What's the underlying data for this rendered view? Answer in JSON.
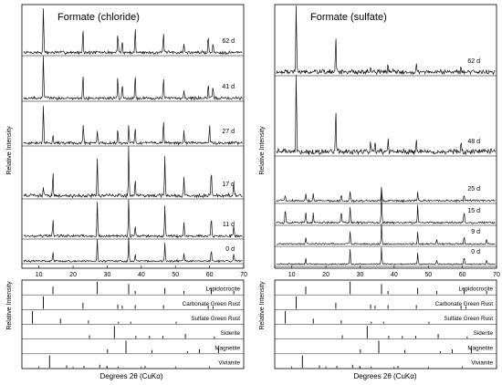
{
  "chart_data": [
    {
      "type": "line",
      "panel": "left",
      "title": "Formate (chloride)",
      "ylabel": "Relative Intensity",
      "xlim": [
        5,
        70
      ],
      "xticks": [
        10,
        20,
        30,
        40,
        50,
        60,
        70
      ],
      "series": [
        {
          "name": "62 d",
          "peaks": [
            [
              11.3,
              1.0
            ],
            [
              22.9,
              0.55
            ],
            [
              33.1,
              0.45
            ],
            [
              34.4,
              0.3
            ],
            [
              38.2,
              0.55
            ],
            [
              46.5,
              0.45
            ],
            [
              52.5,
              0.2
            ],
            [
              59.6,
              0.4
            ],
            [
              61.0,
              0.2
            ]
          ]
        },
        {
          "name": "41 d",
          "peaks": [
            [
              11.3,
              1.0
            ],
            [
              22.9,
              0.6
            ],
            [
              33.1,
              0.5
            ],
            [
              34.4,
              0.35
            ],
            [
              38.2,
              0.55
            ],
            [
              46.5,
              0.45
            ],
            [
              52.5,
              0.2
            ],
            [
              59.6,
              0.35
            ],
            [
              61.0,
              0.25
            ]
          ]
        },
        {
          "name": "27 d",
          "peaks": [
            [
              11.3,
              1.0
            ],
            [
              14.1,
              0.2
            ],
            [
              23.0,
              0.45
            ],
            [
              27.1,
              0.3
            ],
            [
              33.1,
              0.35
            ],
            [
              36.3,
              0.45
            ],
            [
              38.2,
              0.4
            ],
            [
              46.5,
              0.55
            ],
            [
              52.5,
              0.3
            ],
            [
              60.0,
              0.45
            ]
          ]
        },
        {
          "name": "17 d",
          "peaks": [
            [
              11.3,
              0.2
            ],
            [
              14.1,
              0.45
            ],
            [
              27.1,
              0.75
            ],
            [
              36.3,
              1.0
            ],
            [
              38.2,
              0.35
            ],
            [
              46.9,
              0.8
            ],
            [
              52.5,
              0.35
            ],
            [
              60.5,
              0.5
            ],
            [
              67.1,
              0.25
            ]
          ]
        },
        {
          "name": "11 d",
          "peaks": [
            [
              14.1,
              0.45
            ],
            [
              27.1,
              0.9
            ],
            [
              36.3,
              1.0
            ],
            [
              38.2,
              0.3
            ],
            [
              46.9,
              0.8
            ],
            [
              52.5,
              0.35
            ],
            [
              60.5,
              0.55
            ],
            [
              67.1,
              0.3
            ]
          ]
        },
        {
          "name": "0 d",
          "peaks": [
            [
              14.1,
              0.35
            ],
            [
              27.1,
              0.9
            ],
            [
              36.3,
              1.0
            ],
            [
              38.2,
              0.3
            ],
            [
              46.9,
              0.75
            ],
            [
              52.5,
              0.3
            ],
            [
              60.5,
              0.5
            ],
            [
              67.1,
              0.3
            ]
          ]
        }
      ],
      "reference_ylabel": "Relative Intensity",
      "reference_xlabel": "Degrees 2θ (CuKα)",
      "references": [
        {
          "name": "Lepidocrocite",
          "sticks": [
            [
              14.1,
              0.6
            ],
            [
              27.1,
              1.0
            ],
            [
              36.3,
              0.8
            ],
            [
              38.2,
              0.25
            ],
            [
              46.9,
              0.5
            ],
            [
              52.5,
              0.25
            ],
            [
              60.5,
              0.4
            ],
            [
              67.1,
              0.25
            ]
          ]
        },
        {
          "name": "Carbonate Green Rust",
          "sticks": [
            [
              11.3,
              1.0
            ],
            [
              22.9,
              0.5
            ],
            [
              33.1,
              0.35
            ],
            [
              34.4,
              0.25
            ],
            [
              38.2,
              0.3
            ],
            [
              46.5,
              0.3
            ],
            [
              59.6,
              0.25
            ],
            [
              61.0,
              0.2
            ]
          ]
        },
        {
          "name": "Sulfate Green Rust",
          "sticks": [
            [
              8.1,
              1.0
            ],
            [
              16.3,
              0.4
            ],
            [
              24.5,
              0.25
            ],
            [
              33.3,
              0.15
            ],
            [
              36.9,
              0.15
            ],
            [
              50.2,
              0.15
            ]
          ]
        },
        {
          "name": "Siderite",
          "sticks": [
            [
              24.8,
              0.25
            ],
            [
              32.1,
              1.0
            ],
            [
              38.4,
              0.2
            ],
            [
              42.4,
              0.2
            ],
            [
              46.3,
              0.2
            ],
            [
              52.9,
              0.35
            ],
            [
              61.4,
              0.15
            ]
          ]
        },
        {
          "name": "Magnetite",
          "sticks": [
            [
              30.1,
              0.3
            ],
            [
              35.5,
              1.0
            ],
            [
              43.1,
              0.25
            ],
            [
              53.5,
              0.15
            ],
            [
              57.0,
              0.3
            ],
            [
              62.6,
              0.4
            ]
          ]
        },
        {
          "name": "Vivianite",
          "sticks": [
            [
              13.1,
              1.0
            ],
            [
              18.1,
              0.2
            ],
            [
              23.2,
              0.15
            ],
            [
              27.8,
              0.25
            ],
            [
              29.9,
              0.15
            ],
            [
              33.2,
              0.1
            ],
            [
              41.1,
              0.15
            ]
          ]
        }
      ]
    },
    {
      "type": "line",
      "panel": "right",
      "title": "Formate (sulfate)",
      "ylabel": "Relative Intensity",
      "xlim": [
        5,
        70
      ],
      "xticks": [
        10,
        20,
        30,
        40,
        50,
        60,
        70
      ],
      "series": [
        {
          "name": "62 d",
          "peaks": [
            [
              11.3,
              1.0
            ],
            [
              22.9,
              0.55
            ],
            [
              33.1,
              0.1
            ],
            [
              38.2,
              0.12
            ],
            [
              46.5,
              0.1
            ],
            [
              59.6,
              0.08
            ]
          ]
        },
        {
          "name": "48 d",
          "peaks": [
            [
              11.3,
              1.0
            ],
            [
              22.9,
              0.55
            ],
            [
              33.1,
              0.12
            ],
            [
              34.4,
              0.1
            ],
            [
              38.2,
              0.15
            ],
            [
              46.5,
              0.15
            ],
            [
              59.6,
              0.1
            ]
          ]
        },
        {
          "name": "25 d",
          "peaks": [
            [
              8.1,
              0.2
            ],
            [
              14.1,
              0.25
            ],
            [
              16.3,
              0.25
            ],
            [
              24.5,
              0.2
            ],
            [
              27.1,
              0.3
            ],
            [
              36.3,
              0.45
            ],
            [
              46.9,
              0.3
            ],
            [
              60.5,
              0.2
            ]
          ]
        },
        {
          "name": "15 d",
          "peaks": [
            [
              8.1,
              0.45
            ],
            [
              14.1,
              0.35
            ],
            [
              16.3,
              0.35
            ],
            [
              24.5,
              0.4
            ],
            [
              27.1,
              0.5
            ],
            [
              36.3,
              1.0
            ],
            [
              46.9,
              0.6
            ],
            [
              60.5,
              0.4
            ]
          ]
        },
        {
          "name": "9 d",
          "peaks": [
            [
              14.1,
              0.35
            ],
            [
              27.1,
              0.6
            ],
            [
              36.3,
              1.0
            ],
            [
              46.9,
              0.6
            ],
            [
              52.5,
              0.25
            ],
            [
              60.5,
              0.4
            ],
            [
              67.1,
              0.25
            ]
          ]
        },
        {
          "name": "0 d",
          "peaks": [
            [
              14.1,
              0.35
            ],
            [
              27.1,
              0.85
            ],
            [
              36.3,
              1.0
            ],
            [
              46.9,
              0.65
            ],
            [
              52.5,
              0.25
            ],
            [
              60.5,
              0.45
            ],
            [
              67.1,
              0.25
            ]
          ]
        }
      ],
      "reference_ylabel": "Relative Intensity",
      "reference_xlabel": "Degrees 2θ (CuKα)",
      "references": [
        {
          "name": "Lepidocrocite",
          "sticks": [
            [
              14.1,
              0.6
            ],
            [
              27.1,
              1.0
            ],
            [
              36.3,
              0.8
            ],
            [
              38.2,
              0.25
            ],
            [
              46.9,
              0.5
            ],
            [
              52.5,
              0.25
            ],
            [
              60.5,
              0.4
            ],
            [
              67.1,
              0.25
            ]
          ]
        },
        {
          "name": "Carbonate Green Rust",
          "sticks": [
            [
              11.3,
              1.0
            ],
            [
              22.9,
              0.5
            ],
            [
              33.1,
              0.35
            ],
            [
              34.4,
              0.25
            ],
            [
              38.2,
              0.3
            ],
            [
              46.5,
              0.3
            ],
            [
              59.6,
              0.25
            ],
            [
              61.0,
              0.2
            ]
          ]
        },
        {
          "name": "Sulfate Green Rust",
          "sticks": [
            [
              8.1,
              1.0
            ],
            [
              16.3,
              0.4
            ],
            [
              24.5,
              0.25
            ],
            [
              33.3,
              0.15
            ],
            [
              36.9,
              0.15
            ],
            [
              50.2,
              0.15
            ]
          ]
        },
        {
          "name": "Siderite",
          "sticks": [
            [
              24.8,
              0.25
            ],
            [
              32.1,
              1.0
            ],
            [
              38.4,
              0.2
            ],
            [
              42.4,
              0.2
            ],
            [
              46.3,
              0.2
            ],
            [
              52.9,
              0.35
            ],
            [
              61.4,
              0.15
            ]
          ]
        },
        {
          "name": "Magnetite",
          "sticks": [
            [
              30.1,
              0.3
            ],
            [
              35.5,
              1.0
            ],
            [
              43.1,
              0.25
            ],
            [
              53.5,
              0.15
            ],
            [
              57.0,
              0.3
            ],
            [
              62.6,
              0.4
            ]
          ]
        },
        {
          "name": "Vivianite",
          "sticks": [
            [
              13.1,
              1.0
            ],
            [
              18.1,
              0.2
            ],
            [
              23.2,
              0.15
            ],
            [
              27.8,
              0.25
            ],
            [
              29.9,
              0.15
            ],
            [
              33.2,
              0.1
            ],
            [
              41.1,
              0.15
            ]
          ]
        }
      ]
    }
  ]
}
